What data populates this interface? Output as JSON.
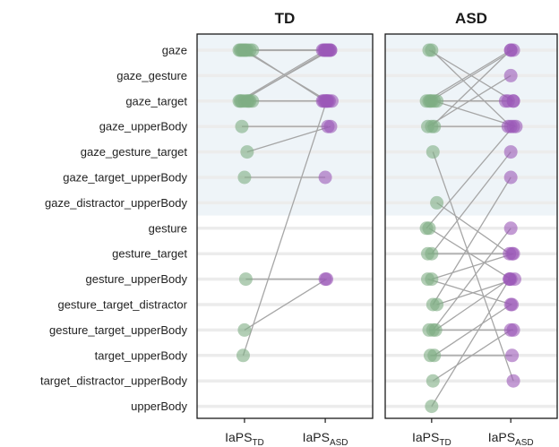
{
  "chart_data": {
    "type": "scatter",
    "categories": [
      "gaze",
      "gaze_gesture",
      "gaze_target",
      "gaze_upperBody",
      "gaze_gesture_target",
      "gaze_target_upperBody",
      "gaze_distractor_upperBody",
      "gesture",
      "gesture_target",
      "gesture_upperBody",
      "gesture_target_distractor",
      "gesture_target_upperBody",
      "target_upperBody",
      "target_distractor_upperBody",
      "upperBody"
    ],
    "highlighted_categories": [
      "gaze",
      "gaze_gesture",
      "gaze_target",
      "gaze_upperBody",
      "gaze_gesture_target",
      "gaze_target_upperBody",
      "gaze_distractor_upperBody"
    ],
    "x_ticks": [
      {
        "base": "IaPS",
        "sub": "TD"
      },
      {
        "base": "IaPS",
        "sub": "ASD"
      }
    ],
    "colors": {
      "td_point": "#7fae83",
      "asd_point": "#9b59b8",
      "line": "#a6a6a6",
      "highlight_band": "#eef4f8",
      "grid": "#ececec"
    },
    "panels": [
      {
        "title": "TD",
        "pairs": [
          {
            "x1": -0.2,
            "y1": "gaze",
            "x2": 0.0,
            "y2": "gaze"
          },
          {
            "x1": -0.1,
            "y1": "gaze",
            "x2": 0.1,
            "y2": "gaze"
          },
          {
            "x1": 0.0,
            "y1": "gaze",
            "x2": -0.1,
            "y2": "gaze"
          },
          {
            "x1": 0.1,
            "y1": "gaze",
            "x2": 0.05,
            "y2": "gaze"
          },
          {
            "x1": 0.2,
            "y1": "gaze",
            "x2": -0.05,
            "y2": "gaze"
          },
          {
            "x1": 0.3,
            "y1": "gaze",
            "x2": 0.15,
            "y2": "gaze"
          },
          {
            "x1": -0.15,
            "y1": "gaze",
            "x2": 0.2,
            "y2": "gaze"
          },
          {
            "x1": 0.05,
            "y1": "gaze",
            "x2": 0.0,
            "y2": "gaze_target"
          },
          {
            "x1": -0.05,
            "y1": "gaze",
            "x2": 0.1,
            "y2": "gaze_target"
          },
          {
            "x1": -0.2,
            "y1": "gaze_target",
            "x2": 0.0,
            "y2": "gaze"
          },
          {
            "x1": -0.1,
            "y1": "gaze_target",
            "x2": 0.1,
            "y2": "gaze"
          },
          {
            "x1": 0.0,
            "y1": "gaze_target",
            "x2": -0.1,
            "y2": "gaze_target"
          },
          {
            "x1": 0.1,
            "y1": "gaze_target",
            "x2": 0.05,
            "y2": "gaze_target"
          },
          {
            "x1": 0.2,
            "y1": "gaze_target",
            "x2": -0.05,
            "y2": "gaze_target"
          },
          {
            "x1": 0.3,
            "y1": "gaze_target",
            "x2": 0.15,
            "y2": "gaze_target"
          },
          {
            "x1": -0.15,
            "y1": "gaze_target",
            "x2": 0.2,
            "y2": "gaze"
          },
          {
            "x1": 0.15,
            "y1": "gaze_target",
            "x2": 0.25,
            "y2": "gaze_target"
          },
          {
            "x1": -0.1,
            "y1": "gaze_upperBody",
            "x2": 0.1,
            "y2": "gaze_upperBody"
          },
          {
            "x1": 0.1,
            "y1": "gaze_gesture_target",
            "x2": 0.2,
            "y2": "gaze_upperBody"
          },
          {
            "x1": 0.0,
            "y1": "gaze_target_upperBody",
            "x2": 0.0,
            "y2": "gaze_target_upperBody"
          },
          {
            "x1": 0.05,
            "y1": "gesture_upperBody",
            "x2": 0.0,
            "y2": "gesture_upperBody"
          },
          {
            "x1": 0.0,
            "y1": "gesture_target_upperBody",
            "x2": 0.05,
            "y2": "gesture_upperBody"
          },
          {
            "x1": -0.05,
            "y1": "target_upperBody",
            "x2": 0.05,
            "y2": "gaze_target"
          }
        ]
      },
      {
        "title": "ASD",
        "pairs": [
          {
            "x1": -0.1,
            "y1": "gaze",
            "x2": 0.1,
            "y2": "gaze_target"
          },
          {
            "x1": 0.0,
            "y1": "gaze",
            "x2": 0.0,
            "y2": "gaze_upperBody"
          },
          {
            "x1": -0.2,
            "y1": "gaze_target",
            "x2": 0.0,
            "y2": "gaze"
          },
          {
            "x1": -0.1,
            "y1": "gaze_target",
            "x2": 0.1,
            "y2": "gaze_target"
          },
          {
            "x1": 0.0,
            "y1": "gaze_target",
            "x2": -0.1,
            "y2": "gaze_target"
          },
          {
            "x1": 0.1,
            "y1": "gaze_target",
            "x2": 0.2,
            "y2": "gaze_upperBody"
          },
          {
            "x1": 0.2,
            "y1": "gaze_target",
            "x2": -0.2,
            "y2": "gaze_target"
          },
          {
            "x1": -0.05,
            "y1": "gaze_target",
            "x2": 0.1,
            "y2": "gaze"
          },
          {
            "x1": -0.15,
            "y1": "gaze_upperBody",
            "x2": 0.0,
            "y2": "gaze_gesture"
          },
          {
            "x1": 0.0,
            "y1": "gaze_upperBody",
            "x2": 0.0,
            "y2": "gaze"
          },
          {
            "x1": 0.1,
            "y1": "gaze_upperBody",
            "x2": -0.1,
            "y2": "gaze_upperBody"
          },
          {
            "x1": 0.05,
            "y1": "gaze_gesture_target",
            "x2": 0.1,
            "y2": "target_distractor_upperBody"
          },
          {
            "x1": 0.2,
            "y1": "gaze_distractor_upperBody",
            "x2": -0.05,
            "y2": "gesture_target"
          },
          {
            "x1": -0.2,
            "y1": "gesture",
            "x2": 0.1,
            "y2": "gaze_upperBody"
          },
          {
            "x1": -0.1,
            "y1": "gesture",
            "x2": 0.0,
            "y2": "gesture_upperBody"
          },
          {
            "x1": -0.15,
            "y1": "gesture_target",
            "x2": 0.05,
            "y2": "gesture_target"
          },
          {
            "x1": 0.0,
            "y1": "gesture_target",
            "x2": 0.0,
            "y2": "gaze_gesture_target"
          },
          {
            "x1": -0.15,
            "y1": "gesture_upperBody",
            "x2": 0.05,
            "y2": "gesture_target_distractor"
          },
          {
            "x1": 0.0,
            "y1": "gesture_upperBody",
            "x2": 0.1,
            "y2": "gesture_target"
          },
          {
            "x1": 0.05,
            "y1": "gesture_target_distractor",
            "x2": 0.0,
            "y2": "gaze_target_upperBody"
          },
          {
            "x1": 0.2,
            "y1": "gesture_target_distractor",
            "x2": 0.15,
            "y2": "gesture_upperBody"
          },
          {
            "x1": -0.1,
            "y1": "gesture_target_upperBody",
            "x2": 0.1,
            "y2": "gesture_target_upperBody"
          },
          {
            "x1": 0.05,
            "y1": "gesture_target_upperBody",
            "x2": 0.0,
            "y2": "gesture"
          },
          {
            "x1": 0.15,
            "y1": "gesture_target_upperBody",
            "x2": -0.05,
            "y2": "gesture_upperBody"
          },
          {
            "x1": -0.05,
            "y1": "target_upperBody",
            "x2": 0.05,
            "y2": "target_upperBody"
          },
          {
            "x1": 0.1,
            "y1": "target_upperBody",
            "x2": 0.0,
            "y2": "gesture_target_distractor"
          },
          {
            "x1": 0.05,
            "y1": "target_distractor_upperBody",
            "x2": 0.0,
            "y2": "gesture_target_upperBody"
          },
          {
            "x1": 0.0,
            "y1": "upperBody",
            "x2": -0.05,
            "y2": "gesture_upperBody"
          }
        ]
      }
    ]
  }
}
